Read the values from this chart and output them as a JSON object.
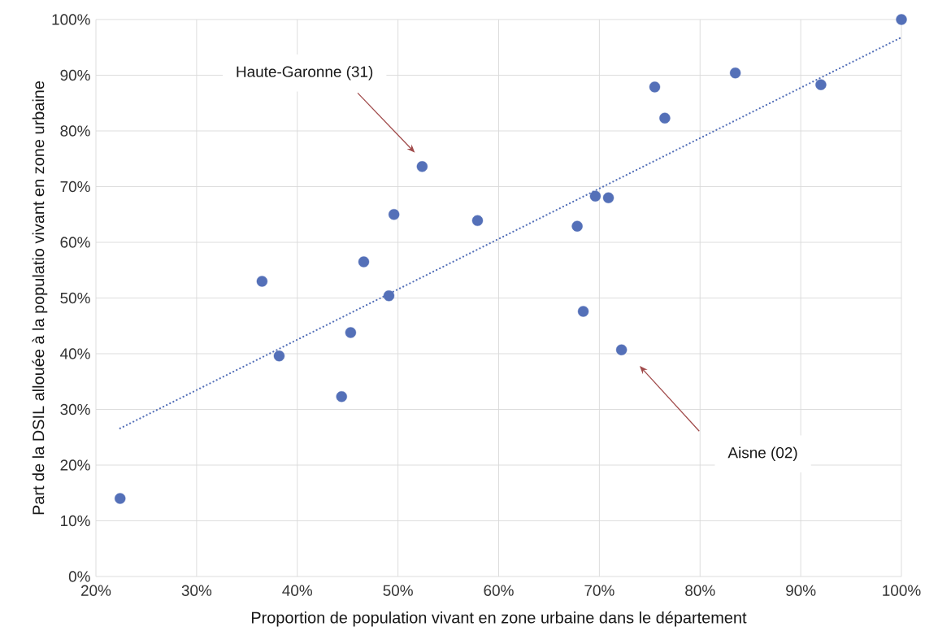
{
  "chart_data": {
    "type": "scatter",
    "xlabel": "Proportion de population vivant en zone urbaine dans le département",
    "ylabel": "Part de la DSIL allouée à la populatio vivant en zone urbaine",
    "xlim": [
      20,
      100
    ],
    "ylim": [
      0,
      100
    ],
    "xticks": [
      {
        "value": 20,
        "label": "20%"
      },
      {
        "value": 30,
        "label": "30%"
      },
      {
        "value": 40,
        "label": "40%"
      },
      {
        "value": 50,
        "label": "50%"
      },
      {
        "value": 60,
        "label": "60%"
      },
      {
        "value": 70,
        "label": "70%"
      },
      {
        "value": 80,
        "label": "80%"
      },
      {
        "value": 90,
        "label": "90%"
      },
      {
        "value": 100,
        "label": "100%"
      }
    ],
    "yticks": [
      {
        "value": 0,
        "label": "0%"
      },
      {
        "value": 10,
        "label": "10%"
      },
      {
        "value": 20,
        "label": "20%"
      },
      {
        "value": 30,
        "label": "30%"
      },
      {
        "value": 40,
        "label": "40%"
      },
      {
        "value": 50,
        "label": "50%"
      },
      {
        "value": 60,
        "label": "60%"
      },
      {
        "value": 70,
        "label": "70%"
      },
      {
        "value": 80,
        "label": "80%"
      },
      {
        "value": 90,
        "label": "90%"
      },
      {
        "value": 100,
        "label": "100%"
      }
    ],
    "grid": true,
    "marker": "circle",
    "series": [
      {
        "color": "#5470b8",
        "x": [
          22.4,
          36.5,
          38.2,
          44.4,
          45.3,
          46.6,
          49.1,
          49.6,
          52.4,
          57.9,
          67.8,
          68.4,
          69.6,
          70.9,
          72.2,
          75.5,
          76.5,
          83.5,
          92.0,
          100
        ],
        "values": [
          14.0,
          53.0,
          39.6,
          32.3,
          43.8,
          56.5,
          50.4,
          65.0,
          73.6,
          63.9,
          62.9,
          47.6,
          68.3,
          68.0,
          40.7,
          87.9,
          82.3,
          90.4,
          88.3,
          100
        ]
      },
      {
        "type": "line",
        "color": "#5470b8",
        "line_style": "dotted",
        "marker": "none",
        "x": [
          22.4,
          100
        ],
        "values": [
          26.6,
          96.8
        ]
      }
    ],
    "annotations": [
      "Haute-Garonne (31)",
      "Aisne (02)"
    ]
  }
}
